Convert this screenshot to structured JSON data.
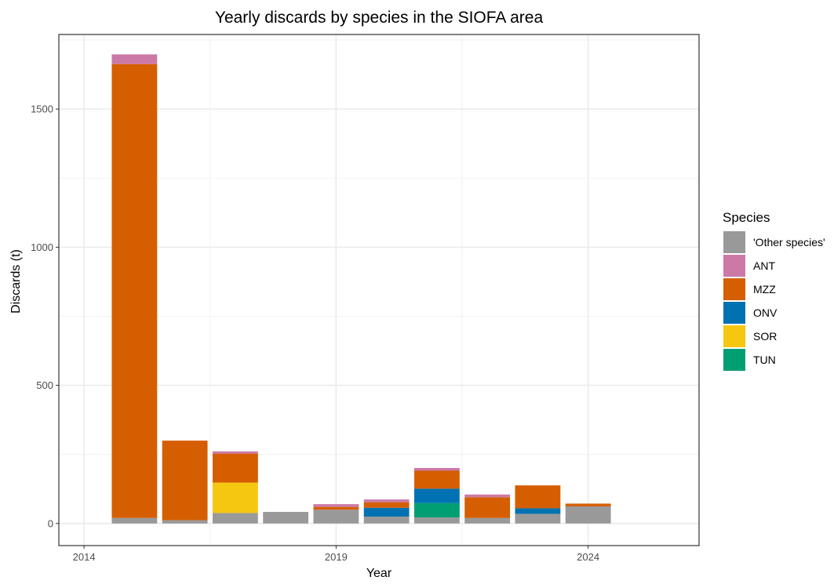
{
  "chart_data": {
    "type": "bar",
    "stacked": true,
    "title": "Yearly discards by species in the SIOFA area",
    "xlabel": "Year",
    "ylabel": "Discards (t)",
    "xlim": [
      2013.5,
      2026.2
    ],
    "ylim": [
      -80,
      1770
    ],
    "x_ticks": [
      2014,
      2019,
      2024
    ],
    "y_ticks": [
      0,
      500,
      1000,
      1500
    ],
    "grid": true,
    "legend_title": "Species",
    "legend_position": "right",
    "categories": [
      2015,
      2016,
      2017,
      2018,
      2019,
      2020,
      2021,
      2022,
      2023,
      2024
    ],
    "series": [
      {
        "name": "'Other species'",
        "color": "#999999",
        "values": [
          20,
          12,
          38,
          42,
          50,
          25,
          22,
          20,
          35,
          62
        ]
      },
      {
        "name": "ANT",
        "color": "#CC79A7",
        "values": [
          35,
          0,
          8,
          0,
          10,
          10,
          10,
          10,
          0,
          0
        ]
      },
      {
        "name": "MZZ",
        "color": "#D55E00",
        "values": [
          1643,
          288,
          105,
          0,
          10,
          20,
          65,
          75,
          83,
          10
        ]
      },
      {
        "name": "ONV",
        "color": "#0072B2",
        "values": [
          0,
          0,
          0,
          0,
          0,
          32,
          52,
          0,
          20,
          0
        ]
      },
      {
        "name": "SOR",
        "color": "#F5C710",
        "values": [
          0,
          0,
          110,
          0,
          0,
          0,
          0,
          0,
          0,
          0
        ]
      },
      {
        "name": "TUN",
        "color": "#009E73",
        "values": [
          0,
          0,
          0,
          0,
          0,
          0,
          52,
          0,
          0,
          0
        ]
      }
    ],
    "stack_order_bottom_to_top": [
      "'Other species'",
      "TUN",
      "SOR",
      "ONV",
      "MZZ",
      "ANT"
    ]
  }
}
